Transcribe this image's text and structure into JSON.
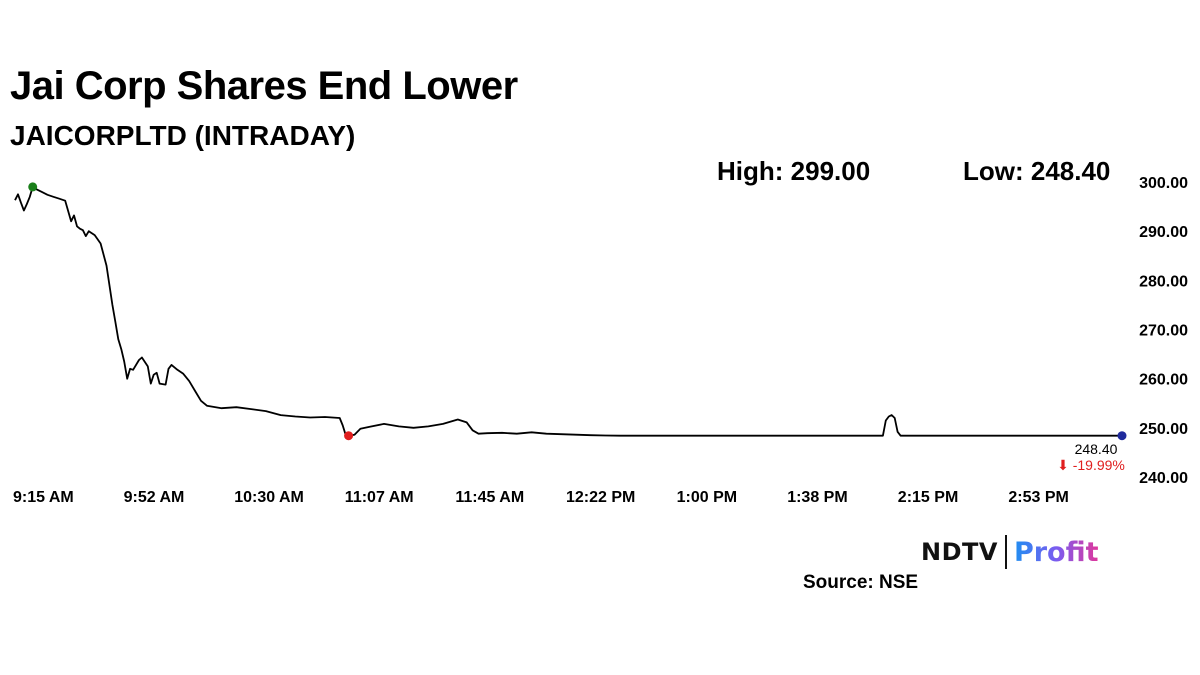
{
  "header": {
    "title": "Jai Corp Shares End Lower",
    "subtitle": "JAICORPLTD (INTRADAY)",
    "high_label": "High: 299.00",
    "low_label": "Low: 248.40"
  },
  "last_price_label": "248.40",
  "change_label": "⬇ -19.99%",
  "branding": {
    "ndtv": "NDTV",
    "profit": "Profit",
    "source": "Source: NSE"
  },
  "colors": {
    "line": "#000000",
    "high_marker": "#1a7f1a",
    "low_marker": "#e01e1e",
    "last_marker": "#1f2a9c",
    "change_text": "#e01e1e"
  },
  "chart_data": {
    "type": "line",
    "title": "Jai Corp Shares End Lower",
    "subtitle": "JAICORPLTD (INTRADAY)",
    "x_tick_labels": [
      "9:15 AM",
      "9:52 AM",
      "10:30 AM",
      "11:07 AM",
      "11:45 AM",
      "12:22 PM",
      "1:00 PM",
      "1:38 PM",
      "2:15 PM",
      "2:53 PM"
    ],
    "y_tick_labels": [
      "240.00",
      "250.00",
      "260.00",
      "270.00",
      "280.00",
      "290.00",
      "300.00"
    ],
    "ylim": [
      240,
      300
    ],
    "grid": false,
    "y_axis_side": "right",
    "high": 299.0,
    "low": 248.4,
    "last": 248.4,
    "change_pct": -19.99,
    "series": [
      {
        "points": [
          [
            "9:15",
            296.3
          ],
          [
            "9:16",
            297.5
          ],
          [
            "9:17",
            295.8
          ],
          [
            "9:18",
            294.2
          ],
          [
            "9:19",
            295.5
          ],
          [
            "9:20",
            297.0
          ],
          [
            "9:21",
            299.0
          ],
          [
            "9:22",
            298.6
          ],
          [
            "9:24",
            298.0
          ],
          [
            "9:26",
            297.4
          ],
          [
            "9:28",
            297.0
          ],
          [
            "9:30",
            296.6
          ],
          [
            "9:32",
            296.2
          ],
          [
            "9:34",
            292.0
          ],
          [
            "9:35",
            293.2
          ],
          [
            "9:36",
            291.0
          ],
          [
            "9:37",
            290.5
          ],
          [
            "9:38",
            290.2
          ],
          [
            "9:39",
            289.0
          ],
          [
            "9:40",
            290.0
          ],
          [
            "9:42",
            289.2
          ],
          [
            "9:44",
            287.5
          ],
          [
            "9:46",
            283.0
          ],
          [
            "9:48",
            275.0
          ],
          [
            "9:49",
            271.5
          ],
          [
            "9:50",
            268.0
          ],
          [
            "9:51",
            266.0
          ],
          [
            "9:52",
            263.5
          ],
          [
            "9:53",
            260.0
          ],
          [
            "9:54",
            262.0
          ],
          [
            "9:55",
            261.8
          ],
          [
            "9:57",
            263.8
          ],
          [
            "9:58",
            264.3
          ],
          [
            "10:00",
            262.5
          ],
          [
            "10:01",
            259.0
          ],
          [
            "10:02",
            260.8
          ],
          [
            "10:03",
            261.2
          ],
          [
            "10:04",
            259.0
          ],
          [
            "10:06",
            258.8
          ],
          [
            "10:07",
            262.0
          ],
          [
            "10:08",
            262.8
          ],
          [
            "10:10",
            261.8
          ],
          [
            "10:12",
            261.0
          ],
          [
            "10:14",
            259.5
          ],
          [
            "10:16",
            257.5
          ],
          [
            "10:18",
            255.5
          ],
          [
            "10:20",
            254.5
          ],
          [
            "10:25",
            254.0
          ],
          [
            "10:30",
            254.2
          ],
          [
            "10:35",
            253.8
          ],
          [
            "10:40",
            253.4
          ],
          [
            "10:45",
            252.6
          ],
          [
            "10:50",
            252.3
          ],
          [
            "10:55",
            252.1
          ],
          [
            "11:00",
            252.2
          ],
          [
            "11:05",
            252.0
          ],
          [
            "11:06",
            250.5
          ],
          [
            "11:07",
            248.6
          ],
          [
            "11:08",
            248.4
          ],
          [
            "11:10",
            248.6
          ],
          [
            "11:12",
            249.8
          ],
          [
            "11:15",
            250.2
          ],
          [
            "11:20",
            250.8
          ],
          [
            "11:25",
            250.3
          ],
          [
            "11:30",
            250.0
          ],
          [
            "11:35",
            250.3
          ],
          [
            "11:40",
            250.8
          ],
          [
            "11:45",
            251.7
          ],
          [
            "11:48",
            251.1
          ],
          [
            "11:50",
            249.5
          ],
          [
            "11:52",
            248.8
          ],
          [
            "11:55",
            248.9
          ],
          [
            "12:00",
            249.0
          ],
          [
            "12:05",
            248.8
          ],
          [
            "12:10",
            249.1
          ],
          [
            "12:15",
            248.8
          ],
          [
            "12:20",
            248.7
          ],
          [
            "12:25",
            248.6
          ],
          [
            "12:30",
            248.5
          ],
          [
            "12:35",
            248.45
          ],
          [
            "12:40",
            248.4
          ],
          [
            "14:09",
            248.4
          ],
          [
            "14:10",
            251.5
          ],
          [
            "14:11",
            252.3
          ],
          [
            "14:12",
            252.6
          ],
          [
            "14:13",
            252.0
          ],
          [
            "14:14",
            249.2
          ],
          [
            "14:15",
            248.4
          ],
          [
            "15:30",
            248.4
          ]
        ]
      }
    ],
    "annotations": [
      "248.40",
      "⬇ -19.99%"
    ]
  }
}
